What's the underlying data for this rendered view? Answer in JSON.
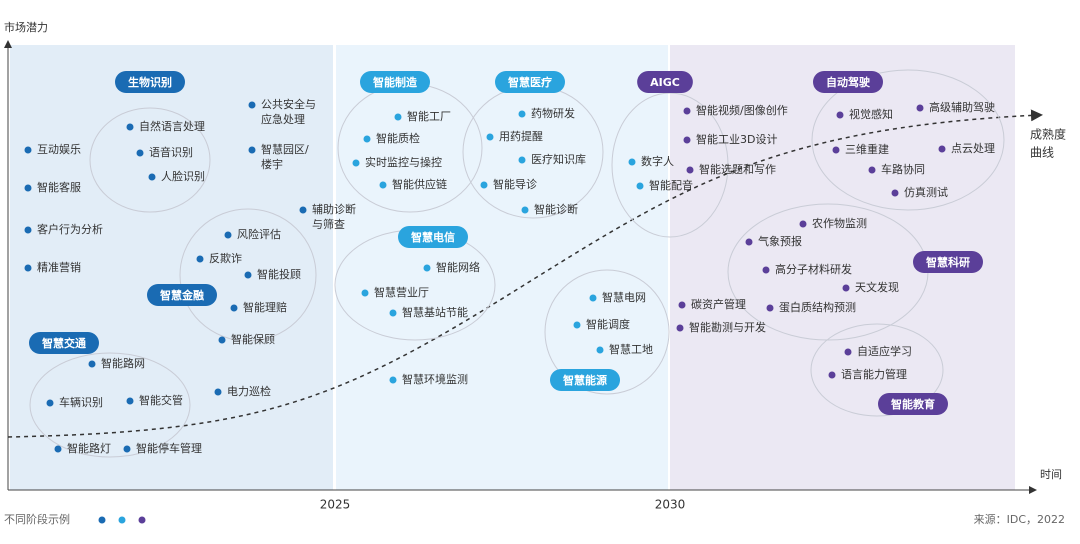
{
  "axes": {
    "y_label": "市场潜力",
    "x_label": "时间",
    "x_ticks": [
      "2025",
      "2030"
    ]
  },
  "panel_colors": [
    "#e2edf7",
    "#eaf4fc",
    "#ebe8f3"
  ],
  "curve_label": [
    "成熟度",
    "曲线"
  ],
  "legend": {
    "label": "不同阶段示例",
    "colors": [
      "#1a6bb3",
      "#2aa4de",
      "#5b3f99"
    ]
  },
  "source": "来源：IDC，2022",
  "groups": [
    {
      "label": "生物识别",
      "color": "#1a6bb3",
      "items": [
        {
          "lines": [
            "自然语言处理"
          ],
          "color": "#1a6bb3"
        },
        {
          "lines": [
            "语音识别"
          ],
          "color": "#1a6bb3"
        },
        {
          "lines": [
            "人脸识别"
          ],
          "color": "#1a6bb3"
        }
      ]
    },
    {
      "label": "智慧金融",
      "color": "#1a6bb3",
      "items": [
        {
          "lines": [
            "风险评估"
          ],
          "color": "#1a6bb3"
        },
        {
          "lines": [
            "反欺诈"
          ],
          "color": "#1a6bb3"
        },
        {
          "lines": [
            "智能投顾"
          ],
          "color": "#1a6bb3"
        },
        {
          "lines": [
            "智能理赔"
          ],
          "color": "#1a6bb3"
        },
        {
          "lines": [
            "智能保顾"
          ],
          "color": "#1a6bb3"
        }
      ]
    },
    {
      "label": "智慧交通",
      "color": "#1a6bb3",
      "items": [
        {
          "lines": [
            "智能路网"
          ],
          "color": "#1a6bb3"
        },
        {
          "lines": [
            "车辆识别"
          ],
          "color": "#1a6bb3"
        },
        {
          "lines": [
            "智能交管"
          ],
          "color": "#1a6bb3"
        },
        {
          "lines": [
            "智能路灯"
          ],
          "color": "#1a6bb3"
        },
        {
          "lines": [
            "智能停车管理"
          ],
          "color": "#1a6bb3"
        }
      ]
    },
    {
      "label": "智能制造",
      "color": "#2aa4de",
      "items": [
        {
          "lines": [
            "智能工厂"
          ],
          "color": "#2aa4de"
        },
        {
          "lines": [
            "智能质检"
          ],
          "color": "#2aa4de"
        },
        {
          "lines": [
            "实时监控与操控"
          ],
          "color": "#2aa4de"
        },
        {
          "lines": [
            "智能供应链"
          ],
          "color": "#2aa4de"
        }
      ]
    },
    {
      "label": "智慧医疗",
      "color": "#2aa4de",
      "items": [
        {
          "lines": [
            "药物研发"
          ],
          "color": "#2aa4de"
        },
        {
          "lines": [
            "用药提醒"
          ],
          "color": "#2aa4de"
        },
        {
          "lines": [
            "医疗知识库"
          ],
          "color": "#2aa4de"
        },
        {
          "lines": [
            "智能导诊"
          ],
          "color": "#2aa4de"
        },
        {
          "lines": [
            "智能诊断"
          ],
          "color": "#2aa4de"
        }
      ]
    },
    {
      "label": "智慧电信",
      "color": "#2aa4de",
      "items": [
        {
          "lines": [
            "智能网络"
          ],
          "color": "#2aa4de"
        },
        {
          "lines": [
            "智慧营业厅"
          ],
          "color": "#2aa4de"
        },
        {
          "lines": [
            "智慧基站节能"
          ],
          "color": "#2aa4de"
        }
      ]
    },
    {
      "label": "智慧能源",
      "color": "#2aa4de",
      "items": [
        {
          "lines": [
            "智慧电网"
          ],
          "color": "#2aa4de"
        },
        {
          "lines": [
            "智能调度"
          ],
          "color": "#2aa4de"
        },
        {
          "lines": [
            "智慧工地"
          ],
          "color": "#2aa4de"
        }
      ]
    },
    {
      "label": "AIGC",
      "color": "#5b3f99",
      "items": [
        {
          "lines": [
            "数字人"
          ],
          "color": "#2aa4de"
        },
        {
          "lines": [
            "智能配音"
          ],
          "color": "#2aa4de"
        },
        {
          "lines": [
            "智能视频/图像创作"
          ],
          "color": "#5b3f99"
        },
        {
          "lines": [
            "智能工业3D设计"
          ],
          "color": "#5b3f99"
        },
        {
          "lines": [
            "智能选题和写作"
          ],
          "color": "#5b3f99"
        }
      ]
    },
    {
      "label": "自动驾驶",
      "color": "#5b3f99",
      "items": [
        {
          "lines": [
            "视觉感知"
          ],
          "color": "#5b3f99"
        },
        {
          "lines": [
            "高级辅助驾驶"
          ],
          "color": "#5b3f99"
        },
        {
          "lines": [
            "三维重建"
          ],
          "color": "#5b3f99"
        },
        {
          "lines": [
            "点云处理"
          ],
          "color": "#5b3f99"
        },
        {
          "lines": [
            "车路协同"
          ],
          "color": "#5b3f99"
        },
        {
          "lines": [
            "仿真测试"
          ],
          "color": "#5b3f99"
        }
      ]
    },
    {
      "label": "智慧科研",
      "color": "#5b3f99",
      "items": [
        {
          "lines": [
            "农作物监测"
          ],
          "color": "#5b3f99"
        },
        {
          "lines": [
            "气象预报"
          ],
          "color": "#5b3f99"
        },
        {
          "lines": [
            "高分子材料研发"
          ],
          "color": "#5b3f99"
        },
        {
          "lines": [
            "天文发现"
          ],
          "color": "#5b3f99"
        },
        {
          "lines": [
            "蛋白质结构预测"
          ],
          "color": "#5b3f99"
        }
      ]
    },
    {
      "label": "智能教育",
      "color": "#5b3f99",
      "items": [
        {
          "lines": [
            "自适应学习"
          ],
          "color": "#5b3f99"
        },
        {
          "lines": [
            "语言能力管理"
          ],
          "color": "#5b3f99"
        }
      ]
    }
  ],
  "standalone": [
    {
      "lines": [
        "互动娱乐"
      ],
      "color": "#1a6bb3"
    },
    {
      "lines": [
        "智能客服"
      ],
      "color": "#1a6bb3"
    },
    {
      "lines": [
        "客户行为分析"
      ],
      "color": "#1a6bb3"
    },
    {
      "lines": [
        "精准营销"
      ],
      "color": "#1a6bb3"
    },
    {
      "lines": [
        "公共安全与",
        "应急处理"
      ],
      "color": "#1a6bb3"
    },
    {
      "lines": [
        "智慧园区/",
        "楼宇"
      ],
      "color": "#1a6bb3"
    },
    {
      "lines": [
        "辅助诊断",
        "与筛查"
      ],
      "color": "#1a6bb3"
    },
    {
      "lines": [
        "电力巡检"
      ],
      "color": "#1a6bb3"
    },
    {
      "lines": [
        "智慧环境监测"
      ],
      "color": "#2aa4de"
    },
    {
      "lines": [
        "碳资产管理"
      ],
      "color": "#5b3f99"
    },
    {
      "lines": [
        "智能勘测与开发"
      ],
      "color": "#5b3f99"
    }
  ]
}
